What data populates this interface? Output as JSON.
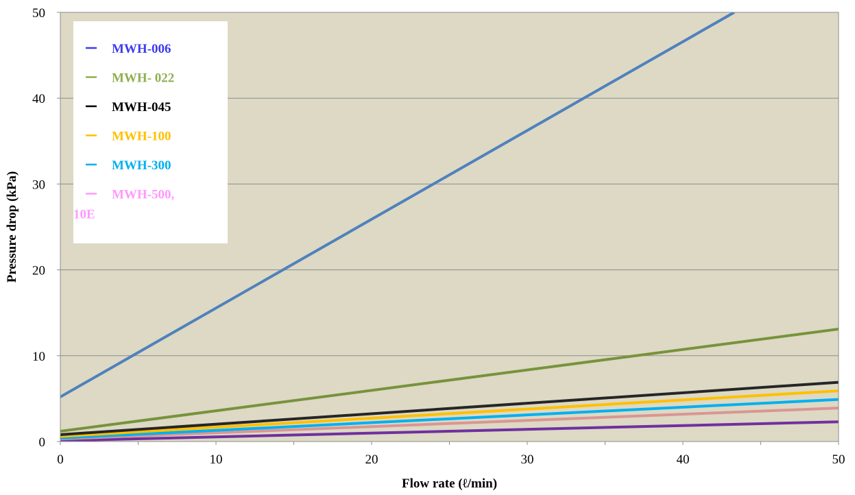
{
  "chart_data": {
    "type": "line",
    "title": "",
    "xlabel": "Flow rate (ℓ/min)",
    "ylabel": "Pressure drop (kPa)",
    "xlim": [
      0,
      50
    ],
    "ylim": [
      0,
      50
    ],
    "x_ticks": [
      0,
      10,
      20,
      30,
      40,
      50
    ],
    "y_ticks": [
      0,
      10,
      20,
      30,
      40,
      50
    ],
    "x_tick_labels": [
      "0",
      "10",
      "20",
      "30",
      "40",
      "50"
    ],
    "y_tick_labels": [
      "0",
      "10",
      "20",
      "30",
      "40",
      "50"
    ],
    "grid": "horizontal",
    "legend_position": "top-left",
    "plot_background": "#ddd9c4",
    "series": [
      {
        "name": "MWH-006",
        "legend_color": "#3b3bf0",
        "line_color": "#4f81bd",
        "x": [
          0,
          43.3
        ],
        "y": [
          5.2,
          50
        ]
      },
      {
        "name": "MWH- 022",
        "legend_color": "#8faf4f",
        "line_color": "#77933c",
        "x": [
          0,
          50
        ],
        "y": [
          1.2,
          13.1
        ]
      },
      {
        "name": "MWH-045",
        "legend_color": "#000000",
        "line_color": "#262626",
        "x": [
          0,
          50
        ],
        "y": [
          0.8,
          6.9
        ]
      },
      {
        "name": "MWH-100",
        "legend_color": "#ffc000",
        "line_color": "#ffc000",
        "x": [
          0,
          50
        ],
        "y": [
          0.6,
          5.9
        ]
      },
      {
        "name": "MWH-300",
        "legend_color": "#00b0f0",
        "line_color": "#00b0f0",
        "x": [
          0,
          50
        ],
        "y": [
          0.4,
          4.9
        ]
      },
      {
        "name": "MWH-500,\n10E",
        "legend_color": "#ff99ff",
        "line_color": "#d99694",
        "x": [
          0,
          50
        ],
        "y": [
          0.3,
          3.9
        ]
      },
      {
        "name": "",
        "legend_color": "#7030a0",
        "line_color": "#7030a0",
        "x": [
          0,
          50
        ],
        "y": [
          0.1,
          2.3
        ]
      }
    ]
  }
}
